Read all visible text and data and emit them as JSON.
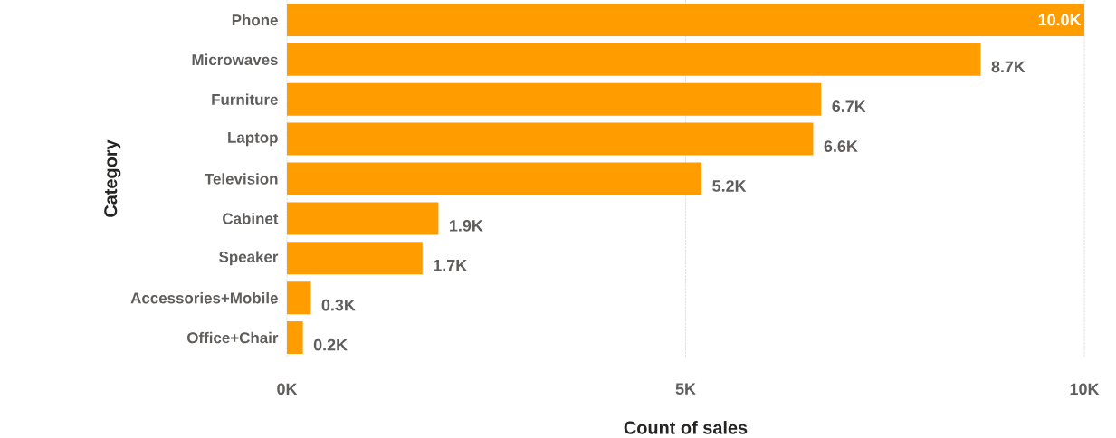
{
  "chart_data": {
    "type": "bar",
    "orientation": "horizontal",
    "xlabel": "Count of sales",
    "ylabel": "Category",
    "categories": [
      "Phone",
      "Microwaves",
      "Furniture",
      "Laptop",
      "Television",
      "Cabinet",
      "Speaker",
      "Accessories+Mobile",
      "Office+Chair"
    ],
    "values": [
      10.0,
      8.7,
      6.7,
      6.6,
      5.2,
      1.9,
      1.7,
      0.3,
      0.2
    ],
    "value_labels": [
      "10.0K",
      "8.7K",
      "6.7K",
      "6.6K",
      "5.2K",
      "1.9K",
      "1.7K",
      "0.3K",
      "0.2K"
    ],
    "color": "#ff9c00",
    "xlim": [
      0,
      10
    ],
    "xticks": [
      {
        "value": 0,
        "label": "0K"
      },
      {
        "value": 5,
        "label": "5K"
      },
      {
        "value": 10,
        "label": "10K"
      }
    ],
    "grid": "x"
  }
}
